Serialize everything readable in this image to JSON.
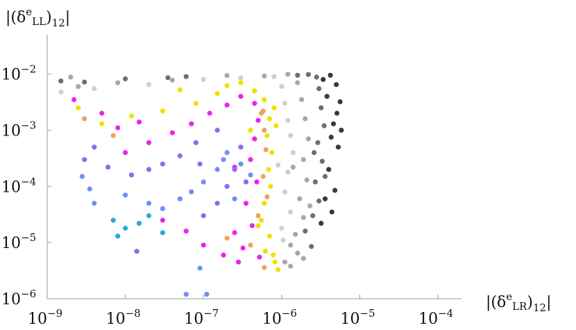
{
  "chart_data": {
    "type": "scatter",
    "x_scale": "log",
    "y_scale": "log",
    "xlim": [
      1e-09,
      0.0002
    ],
    "ylim": [
      1e-06,
      0.05
    ],
    "xlabel": {
      "open": "|(δ",
      "sup": "e",
      "sub_inner": "LR",
      "close": ")",
      "sub": "12",
      "tail": "|"
    },
    "ylabel": {
      "open": "|(δ",
      "sup": "e",
      "sub_inner": "LL",
      "close": ")",
      "sub": "12",
      "tail": "|"
    },
    "x_ticks": [
      {
        "value": 1e-09,
        "base": "10",
        "exp": "−9"
      },
      {
        "value": 1e-08,
        "base": "10",
        "exp": "−8"
      },
      {
        "value": 1e-07,
        "base": "10",
        "exp": "−7"
      },
      {
        "value": 1e-06,
        "base": "10",
        "exp": "−6"
      },
      {
        "value": 1e-05,
        "base": "10",
        "exp": "−5"
      },
      {
        "value": 0.0001,
        "base": "10",
        "exp": "−4"
      }
    ],
    "y_ticks": [
      {
        "value": 1e-06,
        "base": "10",
        "exp": "−6"
      },
      {
        "value": 1e-05,
        "base": "10",
        "exp": "−5"
      },
      {
        "value": 0.0001,
        "base": "10",
        "exp": "−4"
      },
      {
        "value": 0.001,
        "base": "10",
        "exp": "−3"
      },
      {
        "value": 0.01,
        "base": "10",
        "exp": "−2"
      }
    ],
    "grid": false,
    "legend": "none",
    "point_colors": {
      "gray_darkest": "#3a3a3a",
      "gray_dark": "#6e6e6e",
      "gray_mid": "#a8a8a8",
      "gray_light": "#cfcfcf",
      "yellow": "#f0e000",
      "orange": "#f5a05a",
      "magenta": "#ee22ee",
      "violet": "#8a6cf0",
      "blue": "#6f8ff5",
      "cyan": "#2aa8e0"
    },
    "series": [
      {
        "color_key": "gray_darkest",
        "points": [
          [
            4.2e-06,
            0.0095
          ],
          [
            5e-06,
            0.0065
          ],
          [
            5.6e-06,
            0.0032
          ],
          [
            4.6e-06,
            0.0013
          ],
          [
            5.3e-06,
            0.0005
          ],
          [
            4e-06,
            0.0002
          ],
          [
            4.8e-06,
            8.5e-05
          ],
          [
            3.6e-06,
            6e-05
          ],
          [
            4.4e-06,
            3.5e-05
          ],
          [
            3.2e-06,
            2.2e-05
          ],
          [
            3.4e-06,
            0.008
          ],
          [
            3.8e-06,
            0.004
          ],
          [
            5.1e-06,
            0.002
          ],
          [
            4.3e-06,
            0.00075
          ],
          [
            5.8e-06,
            0.001
          ]
        ]
      },
      {
        "color_key": "gray_dark",
        "points": [
          [
            2.2e-06,
            0.0098
          ],
          [
            2.8e-06,
            0.0088
          ],
          [
            3e-06,
            0.0055
          ],
          [
            3.2e-06,
            0.0025
          ],
          [
            3.5e-06,
            0.0012
          ],
          [
            2.9e-06,
            0.0006
          ],
          [
            3.3e-06,
            0.00028
          ],
          [
            2.7e-06,
            0.00012
          ],
          [
            3e-06,
            5.5e-05
          ],
          [
            2.5e-06,
            3e-05
          ],
          [
            2e-06,
            1.6e-05
          ],
          [
            2.4e-06,
            8.5e-06
          ],
          [
            1.6e-06,
            0.0095
          ],
          [
            6e-08,
            0.009
          ],
          [
            1e-08,
            0.0082
          ],
          [
            1.5e-09,
            0.0075
          ],
          [
            3e-09,
            0.0072
          ],
          [
            3.5e-08,
            0.0086
          ],
          [
            2.6e-06,
            0.0004
          ],
          [
            3.6e-06,
            0.00015
          ]
        ]
      },
      {
        "color_key": "gray_mid",
        "points": [
          [
            1.2e-06,
            0.0099
          ],
          [
            1.6e-06,
            0.007
          ],
          [
            1.8e-06,
            0.0035
          ],
          [
            2e-06,
            0.0016
          ],
          [
            2.2e-06,
            0.0007
          ],
          [
            1.9e-06,
            0.0003
          ],
          [
            2.1e-06,
            0.00013
          ],
          [
            1.7e-06,
            6e-05
          ],
          [
            1.9e-06,
            2.8e-05
          ],
          [
            1.5e-06,
            1.4e-05
          ],
          [
            1.3e-06,
            9e-06
          ],
          [
            1.6e-06,
            6.5e-06
          ],
          [
            6e-07,
            0.0092
          ],
          [
            2e-07,
            0.0094
          ],
          [
            4e-08,
            0.0078
          ],
          [
            2e-09,
            0.0088
          ],
          [
            2.5e-09,
            0.006
          ],
          [
            8e-09,
            0.007
          ],
          [
            1.4e-06,
            0.00022
          ],
          [
            2.3e-06,
            4.5e-05
          ],
          [
            1.1e-06,
            4.5e-06
          ],
          [
            1.3e-06,
            3.8e-06
          ],
          [
            1.9e-06,
            5.2e-06
          ]
        ]
      },
      {
        "color_key": "gray_light",
        "points": [
          [
            8e-07,
            0.009
          ],
          [
            1e-06,
            0.006
          ],
          [
            1.1e-06,
            0.003
          ],
          [
            1.2e-06,
            0.0015
          ],
          [
            1.3e-06,
            0.0008
          ],
          [
            1.4e-06,
            0.0004
          ],
          [
            1.2e-06,
            0.00018
          ],
          [
            1.1e-06,
            8e-05
          ],
          [
            1.3e-06,
            3.5e-05
          ],
          [
            1e-06,
            1.8e-05
          ],
          [
            3e-07,
            0.0085
          ],
          [
            1e-07,
            0.008
          ],
          [
            2e-08,
            0.0065
          ],
          [
            4e-09,
            0.0055
          ],
          [
            1.5e-09,
            0.0048
          ],
          [
            9e-07,
            0.00024
          ],
          [
            1.05e-06,
            1.1e-05
          ]
        ]
      },
      {
        "color_key": "yellow",
        "points": [
          [
            3e-07,
            0.007
          ],
          [
            4.5e-07,
            0.005
          ],
          [
            6e-07,
            0.0035
          ],
          [
            8e-07,
            0.0025
          ],
          [
            7e-07,
            0.0016
          ],
          [
            6.5e-07,
            0.0008
          ],
          [
            7.5e-07,
            0.0004
          ],
          [
            6.8e-07,
            0.0002
          ],
          [
            7.2e-07,
            0.0001
          ],
          [
            6e-07,
            5e-05
          ],
          [
            5.5e-07,
            2.5e-05
          ],
          [
            7e-07,
            1.3e-05
          ],
          [
            6.2e-07,
            7e-06
          ],
          [
            8.2e-07,
            4.5e-06
          ],
          [
            9e-07,
            3.3e-06
          ],
          [
            1.5e-07,
            0.0045
          ],
          [
            8e-08,
            0.003
          ],
          [
            3e-08,
            0.0022
          ],
          [
            1.2e-08,
            0.0018
          ],
          [
            5e-09,
            0.0013
          ],
          [
            2.5e-09,
            0.0025
          ],
          [
            2e-07,
            0.0062
          ],
          [
            5e-08,
            0.0052
          ],
          [
            8.5e-07,
            0.0012
          ],
          [
            4e-07,
            0.001
          ],
          [
            5e-07,
            2e-05
          ],
          [
            7.8e-07,
            6e-06
          ]
        ]
      },
      {
        "color_key": "orange",
        "points": [
          [
            5.5e-07,
            0.002
          ],
          [
            6e-07,
            0.001
          ],
          [
            6.3e-07,
            0.00045
          ],
          [
            5.8e-07,
            0.00015
          ],
          [
            6.5e-07,
            6.5e-05
          ],
          [
            5e-07,
            3e-05
          ],
          [
            2e-07,
            1.2e-05
          ],
          [
            6e-07,
            3.6e-06
          ],
          [
            3e-09,
            0.0016
          ],
          [
            7e-09,
            0.0008
          ],
          [
            4e-07,
            9e-06
          ],
          [
            5.8e-07,
            0.0022
          ]
        ]
      },
      {
        "color_key": "magenta",
        "points": [
          [
            3e-07,
            0.004
          ],
          [
            2e-07,
            0.0028
          ],
          [
            1.2e-07,
            0.002
          ],
          [
            7e-08,
            0.0013
          ],
          [
            4e-08,
            0.0009
          ],
          [
            2e-08,
            0.0006
          ],
          [
            1e-08,
            0.0004
          ],
          [
            4.5e-07,
            0.003
          ],
          [
            5e-07,
            0.0015
          ],
          [
            4.5e-07,
            0.0007
          ],
          [
            4e-07,
            0.0003
          ],
          [
            4.8e-07,
            0.00012
          ],
          [
            3.5e-07,
            5e-05
          ],
          [
            4.2e-07,
            2e-05
          ],
          [
            2.5e-07,
            1.5e-05
          ],
          [
            3.2e-07,
            8e-06
          ],
          [
            1.8e-07,
            6e-06
          ],
          [
            1e-07,
            9e-06
          ],
          [
            6e-08,
            1.6e-05
          ],
          [
            3e-08,
            2.5e-05
          ],
          [
            2.2e-09,
            0.0035
          ],
          [
            5e-09,
            0.002
          ],
          [
            2.8e-07,
            4.5e-06
          ],
          [
            5.2e-07,
            5.5e-06
          ],
          [
            1.5e-08,
            0.0014
          ],
          [
            8e-09,
            0.0011
          ],
          [
            2.5e-07,
            0.00022
          ]
        ]
      },
      {
        "color_key": "violet",
        "points": [
          [
            1.5e-07,
            0.001
          ],
          [
            8e-08,
            0.0006
          ],
          [
            5e-08,
            0.00035
          ],
          [
            3e-08,
            0.00025
          ],
          [
            2e-08,
            0.0002
          ],
          [
            1.2e-08,
            0.00016
          ],
          [
            6e-09,
            0.00022
          ],
          [
            3e-07,
            0.0005
          ],
          [
            2.5e-07,
            0.0002
          ],
          [
            2e-07,
            0.0001
          ],
          [
            1.5e-07,
            5e-05
          ],
          [
            1e-07,
            3e-05
          ],
          [
            4e-09,
            0.0005
          ],
          [
            3e-09,
            0.0003
          ],
          [
            1.4e-08,
            7e-06
          ],
          [
            3.5e-07,
            0.00012
          ],
          [
            9e-08,
            0.00025
          ]
        ]
      },
      {
        "color_key": "blue",
        "points": [
          [
            2e-07,
            0.0004
          ],
          [
            1.5e-07,
            0.0002
          ],
          [
            1e-07,
            0.00012
          ],
          [
            7e-08,
            8e-05
          ],
          [
            5e-08,
            6e-05
          ],
          [
            3e-08,
            4e-05
          ],
          [
            2e-08,
            5e-05
          ],
          [
            1e-08,
            7e-05
          ],
          [
            2.5e-07,
            6e-05
          ],
          [
            3e-07,
            0.00025
          ],
          [
            2.8e-09,
            0.00015
          ],
          [
            3.5e-09,
            9e-05
          ],
          [
            4e-09,
            5e-05
          ],
          [
            6e-08,
            1.2e-06
          ],
          [
            9e-08,
            3.5e-06
          ],
          [
            1.1e-07,
            1.2e-06
          ],
          [
            1.8e-07,
            0.0003
          ],
          [
            4e-07,
            0.00016
          ]
        ]
      },
      {
        "color_key": "cyan",
        "points": [
          [
            7e-09,
            2.5e-05
          ],
          [
            1e-08,
            1.8e-05
          ],
          [
            2e-08,
            3e-05
          ],
          [
            8e-09,
            1.3e-05
          ],
          [
            1.5e-08,
            2.2e-05
          ],
          [
            3e-08,
            1.5e-05
          ]
        ]
      }
    ]
  }
}
